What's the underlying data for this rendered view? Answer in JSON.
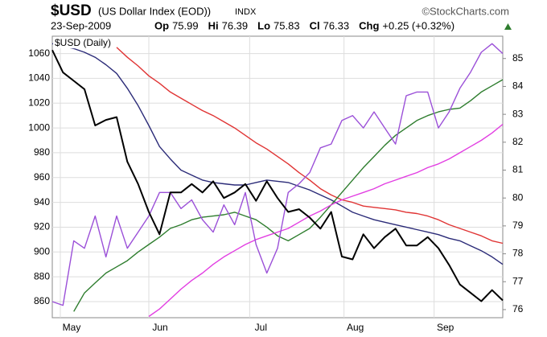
{
  "chart_data": {
    "type": "line",
    "title": "$USD",
    "subtitle": "(US Dollar Index (EOD))",
    "exchange": "INDX",
    "source": "©StockCharts.com",
    "date": "23-Sep-2009",
    "quote": [
      {
        "label": "Op",
        "value": "75.99"
      },
      {
        "label": "Hi",
        "value": "76.39"
      },
      {
        "label": "Lo",
        "value": "75.83"
      },
      {
        "label": "Cl",
        "value": "76.33"
      },
      {
        "label": "Chg",
        "value": "+0.25 (+0.32%)"
      }
    ],
    "x": [
      0,
      1,
      2,
      3,
      4,
      5,
      6,
      7,
      8,
      9,
      10,
      11,
      12,
      13,
      14,
      15,
      16,
      17,
      18,
      19,
      20,
      21,
      22,
      23,
      24,
      25,
      26,
      27,
      28,
      29,
      30,
      31,
      32,
      33,
      34,
      35,
      36,
      37,
      38,
      39,
      40,
      41,
      42
    ],
    "xlim": [
      0,
      42
    ],
    "xticks": [
      {
        "value": 0.75,
        "label": "May"
      },
      {
        "value": 9,
        "label": "Jun"
      },
      {
        "value": 18.4,
        "label": "Jul"
      },
      {
        "value": 27.2,
        "label": "Aug"
      },
      {
        "value": 35.6,
        "label": "Sep"
      }
    ],
    "ylim": [
      847,
      1074
    ],
    "yticks": [
      860,
      880,
      900,
      920,
      940,
      960,
      980,
      1000,
      1020,
      1040,
      1060
    ],
    "y2lim": [
      75.71,
      85.8
    ],
    "y2ticks": [
      76,
      77,
      78,
      79,
      80,
      81,
      82,
      83,
      84,
      85
    ],
    "grid": true,
    "legend": "top-left",
    "series": [
      {
        "color": "#e03434",
        "values": [
          null,
          null,
          null,
          null,
          null,
          null,
          1065,
          1057,
          1050,
          1042,
          1036,
          1029,
          1024,
          1019,
          1014,
          1010,
          1005,
          1000,
          994,
          988,
          983,
          977,
          971,
          964,
          958,
          951,
          946,
          942,
          940,
          937,
          936,
          935,
          934,
          932,
          931,
          929,
          926,
          922,
          919,
          916,
          913,
          909,
          907
        ]
      },
      {
        "color": "#2b2b78",
        "values": [
          1068,
          1066,
          1064,
          1061,
          1057,
          1051,
          1044,
          1032,
          1018,
          1002,
          985,
          975,
          966,
          962,
          958,
          956,
          955,
          954,
          954,
          956,
          958,
          957,
          956,
          953,
          950,
          946,
          942,
          937,
          932,
          929,
          926,
          924,
          922,
          920,
          918,
          916,
          914,
          911,
          909,
          905,
          901,
          896,
          890
        ]
      },
      {
        "color": "#2e7d2e",
        "values": [
          null,
          null,
          852,
          867,
          875,
          883,
          888,
          893,
          900,
          906,
          912,
          919,
          922,
          926,
          928,
          929,
          930,
          932,
          929,
          926,
          920,
          913,
          909,
          914,
          919,
          928,
          938,
          948,
          958,
          968,
          977,
          986,
          994,
          1000,
          1006,
          1010,
          1013,
          1015,
          1016,
          1022,
          1029,
          1034,
          1039
        ]
      },
      {
        "color": "#e23ee2",
        "values": [
          null,
          null,
          null,
          null,
          null,
          null,
          null,
          null,
          null,
          848,
          854,
          862,
          870,
          877,
          883,
          890,
          896,
          901,
          906,
          910,
          913,
          916,
          919,
          924,
          929,
          933,
          938,
          942,
          945,
          948,
          951,
          955,
          958,
          961,
          964,
          968,
          971,
          975,
          980,
          985,
          990,
          996,
          1003
        ]
      },
      {
        "color": "#9b50d8",
        "values": [
          860,
          857,
          909,
          903,
          929,
          896,
          929,
          903,
          916,
          929,
          948,
          948,
          935,
          942,
          926,
          916,
          938,
          922,
          948,
          906,
          883,
          903,
          948,
          955,
          964,
          984,
          987,
          1006,
          1010,
          1000,
          1013,
          1000,
          987,
          1026,
          1029,
          1029,
          1000,
          1013,
          1032,
          1045,
          1061,
          1068,
          1060
        ]
      },
      {
        "name": "$USD (Daily)",
        "color": "#000000",
        "axis": "y2",
        "values": [
          85.3,
          84.5,
          84.2,
          83.9,
          82.6,
          82.8,
          82.9,
          81.3,
          80.5,
          79.5,
          78.7,
          80.2,
          80.2,
          80.5,
          80.2,
          80.6,
          80.0,
          80.2,
          80.5,
          79.9,
          80.6,
          80.0,
          79.5,
          79.6,
          79.3,
          78.9,
          79.5,
          77.9,
          77.8,
          78.7,
          78.2,
          78.6,
          78.9,
          78.3,
          78.3,
          78.6,
          78.2,
          77.6,
          76.9,
          76.6,
          76.3,
          76.7,
          76.33
        ]
      }
    ]
  }
}
